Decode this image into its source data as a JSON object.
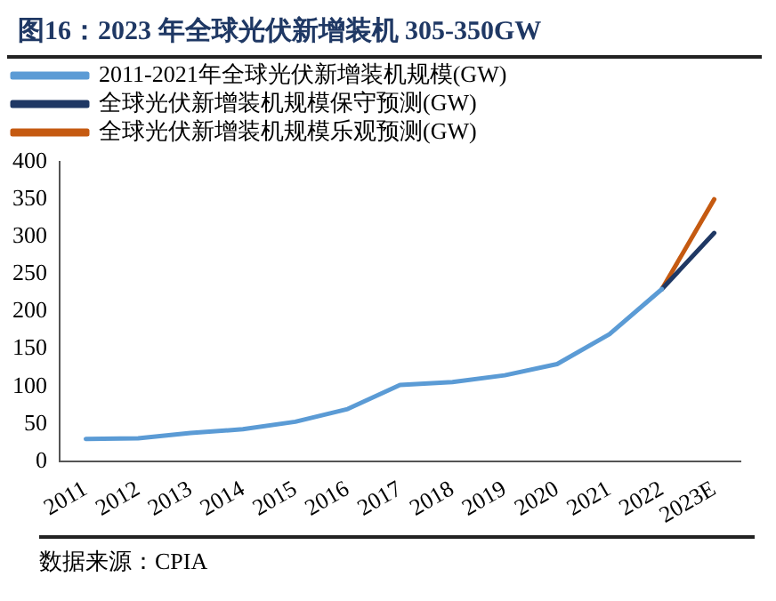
{
  "chart_data": {
    "type": "line",
    "title": "图16：2023 年全球光伏新增装机 305-350GW",
    "categories": [
      "2011",
      "2012",
      "2013",
      "2014",
      "2015",
      "2016",
      "2017",
      "2018",
      "2019",
      "2020",
      "2021",
      "2022",
      "2023E"
    ],
    "series": [
      {
        "name": "2011-2021年全球光伏新增装机规模(GW)",
        "color": "#5b9bd5",
        "values": [
          30,
          31,
          38,
          43,
          53,
          70,
          102,
          106,
          115,
          130,
          170,
          230,
          null
        ]
      },
      {
        "name": "全球光伏新增装机规模保守预测(GW)",
        "color": "#1f3864",
        "values": [
          null,
          null,
          null,
          null,
          null,
          null,
          null,
          null,
          null,
          null,
          null,
          230,
          305
        ]
      },
      {
        "name": "全球光伏新增装机规模乐观预测(GW)",
        "color": "#c55a11",
        "values": [
          null,
          null,
          null,
          null,
          null,
          null,
          null,
          null,
          null,
          null,
          null,
          230,
          350
        ]
      }
    ],
    "ylim": [
      0,
      400
    ],
    "yticks": [
      0,
      50,
      100,
      150,
      200,
      250,
      300,
      350,
      400
    ],
    "grid": false,
    "legend": "top",
    "marker": "none",
    "line_style": "solid",
    "annotations": [
      "数据来源：CPIA"
    ]
  }
}
